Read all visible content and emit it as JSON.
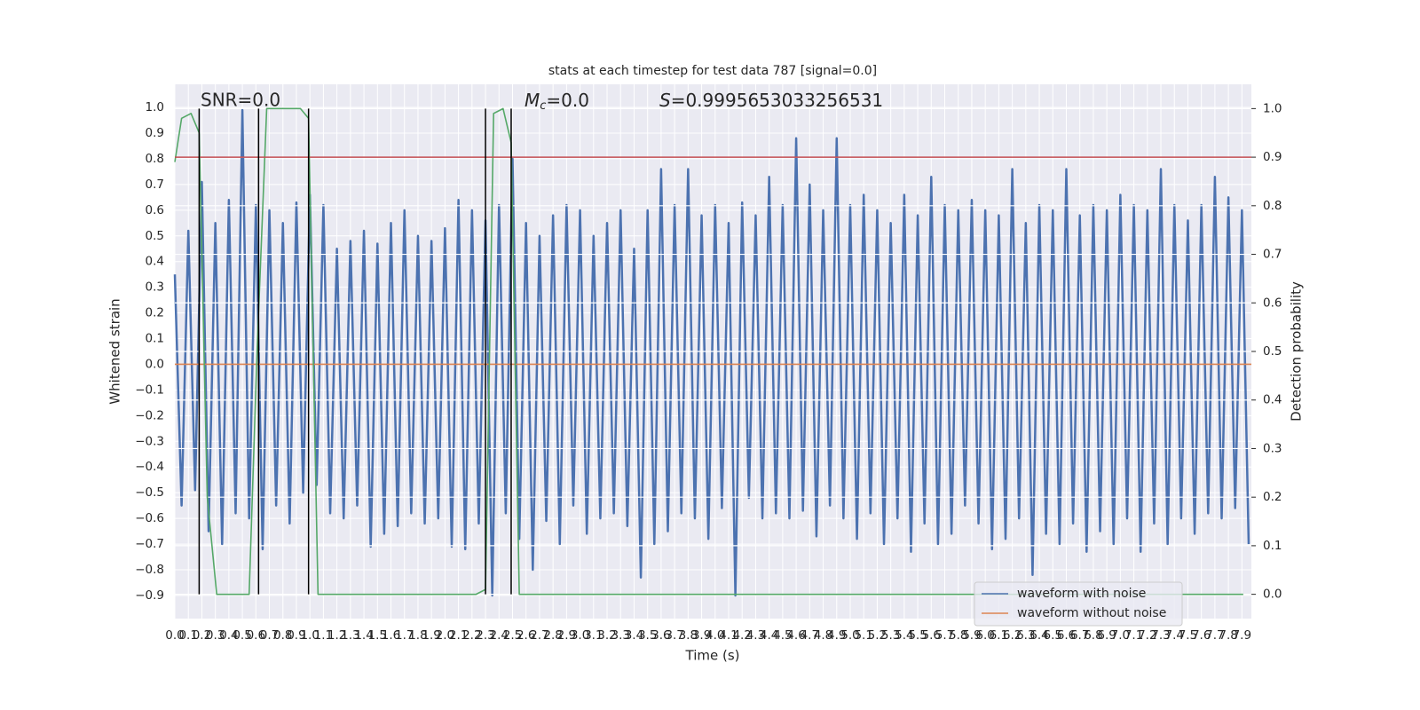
{
  "chart_data": {
    "type": "line",
    "title": "stats at each timestep for test data 787 [signal=0.0]",
    "x_label": "Time (s)",
    "y_label": "Whitened strain",
    "y2_label": "Detection probability",
    "annotations": [
      {
        "text": "SNR=0.0"
      },
      {
        "parts": [
          "M",
          "c",
          "=0.0"
        ]
      },
      {
        "parts": [
          "S",
          "=0.9995653033256531"
        ]
      }
    ],
    "xlim": [
      0,
      7.97
    ],
    "ylim": [
      -0.99,
      1.09
    ],
    "y2lim": [
      -0.05,
      1.05
    ],
    "xticks": [
      {
        "value": 0,
        "label": "0.0"
      },
      0.1,
      0.2,
      0.3,
      0.4,
      0.5,
      0.6,
      0.7,
      0.8,
      0.9,
      {
        "value": 1,
        "label": "1.0"
      },
      1.1,
      1.2,
      1.3,
      1.4,
      1.5,
      1.6,
      1.7,
      1.8,
      1.9,
      {
        "value": 2,
        "label": "2.0"
      },
      2.1,
      2.2,
      2.3,
      2.4,
      2.5,
      2.6,
      2.7,
      2.8,
      2.9,
      {
        "value": 3,
        "label": "3.0"
      },
      3.1,
      3.2,
      3.3,
      3.4,
      3.5,
      3.6,
      3.7,
      3.8,
      3.9,
      {
        "value": 4,
        "label": "4.0"
      },
      4.1,
      4.2,
      4.3,
      4.4,
      4.5,
      4.6,
      4.7,
      4.8,
      4.9,
      {
        "value": 5,
        "label": "5.0"
      },
      5.1,
      5.2,
      5.3,
      5.4,
      5.5,
      5.6,
      5.7,
      5.8,
      5.9,
      {
        "value": 6,
        "label": "6.0"
      },
      6.1,
      6.2,
      6.3,
      6.4,
      6.5,
      6.6,
      6.7,
      6.8,
      6.9,
      {
        "value": 7,
        "label": "7.0"
      },
      7.1,
      7.2,
      7.3,
      7.4,
      7.5,
      7.6,
      7.7,
      7.8,
      7.9
    ],
    "yticks": [
      {
        "value": -0.9,
        "label": "−0.9"
      },
      {
        "value": -0.8,
        "label": "−0.8"
      },
      {
        "value": -0.7,
        "label": "−0.7"
      },
      {
        "value": -0.6,
        "label": "−0.6"
      },
      {
        "value": -0.5,
        "label": "−0.5"
      },
      {
        "value": -0.4,
        "label": "−0.4"
      },
      {
        "value": -0.3,
        "label": "−0.3"
      },
      {
        "value": -0.2,
        "label": "−0.2"
      },
      {
        "value": -0.1,
        "label": "−0.1"
      },
      {
        "value": 0,
        "label": "0.0"
      },
      0.1,
      0.2,
      0.3,
      0.4,
      0.5,
      0.6,
      0.7,
      0.8,
      0.9,
      {
        "value": 1,
        "label": "1.0"
      }
    ],
    "y2ticks": [
      {
        "value": 0,
        "label": "0.0"
      },
      0.1,
      0.2,
      0.3,
      0.4,
      0.5,
      0.6,
      0.7,
      0.8,
      0.9,
      {
        "value": 1,
        "label": "1.0"
      }
    ],
    "grid": true,
    "legend": "lower right",
    "series": [
      {
        "name": "waveform with noise",
        "color": "#4c72b0",
        "x": [
          0,
          0.05,
          0.1,
          0.15,
          0.2,
          0.25,
          0.3,
          0.35,
          0.4,
          0.45,
          0.5,
          0.55,
          0.6,
          0.65,
          0.7,
          0.75,
          0.8,
          0.85,
          0.9,
          0.95,
          1,
          1.05,
          1.1,
          1.15,
          1.2,
          1.25,
          1.3,
          1.35,
          1.4,
          1.45,
          1.5,
          1.55,
          1.6,
          1.65,
          1.7,
          1.75,
          1.8,
          1.85,
          1.9,
          1.95,
          2,
          2.05,
          2.1,
          2.15,
          2.2,
          2.25,
          2.3,
          2.35,
          2.4,
          2.45,
          2.5,
          2.55,
          2.6,
          2.65,
          2.7,
          2.75,
          2.8,
          2.85,
          2.9,
          2.95,
          3,
          3.05,
          3.1,
          3.15,
          3.2,
          3.25,
          3.3,
          3.35,
          3.4,
          3.45,
          3.5,
          3.55,
          3.6,
          3.65,
          3.7,
          3.75,
          3.8,
          3.85,
          3.9,
          3.95,
          4,
          4.05,
          4.1,
          4.15,
          4.2,
          4.25,
          4.3,
          4.35,
          4.4,
          4.45,
          4.5,
          4.55,
          4.6,
          4.65,
          4.7,
          4.75,
          4.8,
          4.85,
          4.9,
          4.95,
          5,
          5.05,
          5.1,
          5.15,
          5.2,
          5.25,
          5.3,
          5.35,
          5.4,
          5.45,
          5.5,
          5.55,
          5.6,
          5.65,
          5.7,
          5.75,
          5.8,
          5.85,
          5.9,
          5.95,
          6,
          6.05,
          6.1,
          6.15,
          6.2,
          6.25,
          6.3,
          6.35,
          6.4,
          6.45,
          6.5,
          6.55,
          6.6,
          6.65,
          6.7,
          6.75,
          6.8,
          6.85,
          6.9,
          6.95,
          7,
          7.05,
          7.1,
          7.15,
          7.2,
          7.25,
          7.3,
          7.35,
          7.4,
          7.45,
          7.5,
          7.55,
          7.6,
          7.65,
          7.7,
          7.75,
          7.8,
          7.85,
          7.9,
          7.95
        ],
        "values": [
          0.35,
          -0.55,
          0.52,
          -0.49,
          0.71,
          -0.65,
          0.55,
          -0.7,
          0.64,
          -0.58,
          0.99,
          -0.6,
          0.62,
          -0.72,
          0.6,
          -0.55,
          0.55,
          -0.62,
          0.63,
          -0.5,
          0.66,
          -0.47,
          0.62,
          -0.58,
          0.45,
          -0.6,
          0.48,
          -0.55,
          0.52,
          -0.71,
          0.47,
          -0.66,
          0.55,
          -0.63,
          0.6,
          -0.58,
          0.5,
          -0.62,
          0.48,
          -0.6,
          0.53,
          -0.71,
          0.64,
          -0.72,
          0.6,
          -0.62,
          0.56,
          -0.9,
          0.62,
          -0.58,
          0.8,
          -0.68,
          0.55,
          -0.8,
          0.5,
          -0.61,
          0.58,
          -0.7,
          0.62,
          -0.55,
          0.6,
          -0.66,
          0.5,
          -0.6,
          0.55,
          -0.58,
          0.6,
          -0.63,
          0.45,
          -0.83,
          0.6,
          -0.7,
          0.76,
          -0.65,
          0.62,
          -0.58,
          0.76,
          -0.6,
          0.58,
          -0.68,
          0.62,
          -0.56,
          0.55,
          -0.9,
          0.63,
          -0.52,
          0.58,
          -0.6,
          0.73,
          -0.58,
          0.62,
          -0.6,
          0.88,
          -0.57,
          0.7,
          -0.67,
          0.6,
          -0.55,
          0.88,
          -0.6,
          0.62,
          -0.68,
          0.66,
          -0.58,
          0.6,
          -0.7,
          0.55,
          -0.6,
          0.66,
          -0.73,
          0.58,
          -0.62,
          0.73,
          -0.7,
          0.62,
          -0.66,
          0.6,
          -0.55,
          0.64,
          -0.62,
          0.6,
          -0.72,
          0.58,
          -0.68,
          0.76,
          -0.6,
          0.55,
          -0.82,
          0.62,
          -0.66,
          0.6,
          -0.7,
          0.76,
          -0.62,
          0.58,
          -0.73,
          0.62,
          -0.65,
          0.6,
          -0.7,
          0.66,
          -0.6,
          0.62,
          -0.73,
          0.6,
          -0.62,
          0.76,
          -0.7,
          0.62,
          -0.6,
          0.56,
          -0.66,
          0.62,
          -0.58,
          0.73,
          -0.6,
          0.65,
          -0.56,
          0.6,
          -0.7
        ]
      },
      {
        "name": "waveform without noise",
        "color": "#dd8452",
        "x": [
          0,
          7.97
        ],
        "values": [
          0,
          0
        ]
      },
      {
        "color": "#55a868",
        "axis": "y2",
        "x": [
          0,
          0.05,
          0.12,
          0.18,
          0.24,
          0.31,
          0.43,
          0.55,
          0.61,
          0.68,
          0.93,
          0.99,
          1.06,
          2.23,
          2.3,
          2.36,
          2.43,
          2.49,
          2.55,
          7.91
        ],
        "values": [
          0.89,
          0.98,
          0.99,
          0.95,
          0.2,
          0,
          0,
          0,
          0.51,
          1,
          1,
          0.98,
          0,
          0,
          0.01,
          0.99,
          1,
          0.93,
          0,
          0
        ]
      }
    ],
    "threshold": {
      "value": 0.9,
      "axis": "y2",
      "color": "#c44e52"
    },
    "detections": {
      "x": [
        0.18,
        0.62,
        0.99,
        2.3,
        2.49
      ],
      "color": "#000000"
    }
  }
}
